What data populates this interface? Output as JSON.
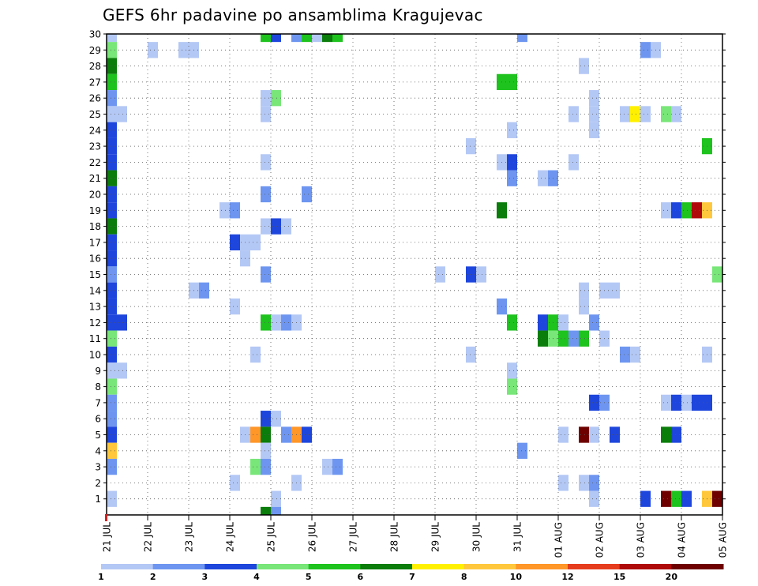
{
  "chart_data": {
    "type": "heatmap",
    "title": "GEFS 6hr padavine po ansamblima Kragujevac",
    "x_tick_labels": [
      "21 JUL",
      "22 JUL",
      "23 JUL",
      "24 JUL",
      "25 JUL",
      "26 JUL",
      "27 JUL",
      "28 JUL",
      "29 JUL",
      "30 JUL",
      "31 JUL",
      "01 AUG",
      "02 AUG",
      "03 AUG",
      "04 AUG",
      "05 AUG"
    ],
    "y_tick_labels": [
      "1",
      "2",
      "3",
      "4",
      "5",
      "6",
      "7",
      "8",
      "9",
      "10",
      "11",
      "12",
      "13",
      "14",
      "15",
      "16",
      "17",
      "18",
      "19",
      "20",
      "21",
      "22",
      "23",
      "24",
      "25",
      "26",
      "27",
      "28",
      "29",
      "30"
    ],
    "ylim": [
      0,
      30
    ],
    "x_steps": 60,
    "steps_per_day": 4,
    "grid": true,
    "colorbar": {
      "labels": [
        "1",
        "2",
        "3",
        "4",
        "5",
        "6",
        "7",
        "8",
        "10",
        "12",
        "15",
        "20"
      ],
      "colors": [
        "#b4c8f5",
        "#6e96f0",
        "#1e46dc",
        "#78e678",
        "#1ec31e",
        "#0a7d0a",
        "#fff000",
        "#ffc83c",
        "#ff9628",
        "#e63c1e",
        "#af0a0a",
        "#6e0000"
      ]
    },
    "cells": [
      [
        30,
        0,
        0
      ],
      [
        29,
        0,
        3
      ],
      [
        28,
        0,
        5
      ],
      [
        27,
        0,
        4
      ],
      [
        26,
        0,
        1
      ],
      [
        25,
        0,
        0
      ],
      [
        25,
        1,
        0
      ],
      [
        24,
        0,
        2
      ],
      [
        23,
        0,
        2
      ],
      [
        22,
        0,
        2
      ],
      [
        21,
        0,
        5
      ],
      [
        20,
        0,
        2
      ],
      [
        19,
        0,
        2
      ],
      [
        18,
        0,
        5
      ],
      [
        17,
        0,
        2
      ],
      [
        16,
        0,
        2
      ],
      [
        15,
        0,
        1
      ],
      [
        14,
        0,
        2
      ],
      [
        13,
        0,
        2
      ],
      [
        12,
        0,
        2
      ],
      [
        12,
        1,
        2
      ],
      [
        11,
        0,
        3
      ],
      [
        10,
        0,
        2
      ],
      [
        9,
        0,
        0
      ],
      [
        9,
        1,
        0
      ],
      [
        8,
        0,
        3
      ],
      [
        7,
        0,
        1
      ],
      [
        6,
        0,
        1
      ],
      [
        5,
        0,
        2
      ],
      [
        4,
        0,
        7
      ],
      [
        3,
        0,
        1
      ],
      [
        1,
        0,
        0
      ],
      [
        29,
        4,
        0
      ],
      [
        29,
        7,
        0
      ],
      [
        29,
        8,
        0
      ],
      [
        30,
        15,
        4
      ],
      [
        30,
        16,
        2
      ],
      [
        30,
        18,
        1
      ],
      [
        30,
        19,
        4
      ],
      [
        30,
        20,
        0
      ],
      [
        30,
        21,
        5
      ],
      [
        30,
        22,
        4
      ],
      [
        26,
        15,
        0
      ],
      [
        26,
        16,
        3
      ],
      [
        25,
        15,
        0
      ],
      [
        22,
        15,
        0
      ],
      [
        20,
        15,
        1
      ],
      [
        19,
        11,
        0
      ],
      [
        19,
        12,
        1
      ],
      [
        18,
        15,
        0
      ],
      [
        18,
        16,
        2
      ],
      [
        18,
        17,
        0
      ],
      [
        17,
        12,
        2
      ],
      [
        17,
        13,
        0
      ],
      [
        17,
        14,
        0
      ],
      [
        16,
        13,
        0
      ],
      [
        15,
        15,
        1
      ],
      [
        14,
        8,
        0
      ],
      [
        14,
        9,
        1
      ],
      [
        13,
        12,
        0
      ],
      [
        12,
        15,
        4
      ],
      [
        12,
        16,
        0
      ],
      [
        12,
        17,
        1
      ],
      [
        12,
        18,
        0
      ],
      [
        10,
        14,
        0
      ],
      [
        6,
        15,
        2
      ],
      [
        6,
        16,
        0
      ],
      [
        5,
        13,
        0
      ],
      [
        5,
        14,
        8
      ],
      [
        5,
        15,
        5
      ],
      [
        5,
        17,
        1
      ],
      [
        5,
        18,
        8
      ],
      [
        5,
        19,
        2
      ],
      [
        4,
        15,
        0
      ],
      [
        3,
        14,
        3
      ],
      [
        3,
        15,
        1
      ],
      [
        3,
        21,
        0
      ],
      [
        3,
        22,
        1
      ],
      [
        2,
        12,
        0
      ],
      [
        2,
        18,
        0
      ],
      [
        1,
        16,
        0
      ],
      [
        0,
        15,
        5
      ],
      [
        0,
        16,
        1
      ],
      [
        20,
        19,
        1
      ],
      [
        15,
        32,
        0
      ],
      [
        15,
        35,
        2
      ],
      [
        15,
        36,
        0
      ],
      [
        10,
        35,
        0
      ],
      [
        23,
        35,
        0
      ],
      [
        22,
        38,
        0
      ],
      [
        22,
        39,
        2
      ],
      [
        21,
        39,
        1
      ],
      [
        19,
        38,
        5
      ],
      [
        27,
        38,
        4
      ],
      [
        27,
        39,
        4
      ],
      [
        24,
        39,
        0
      ],
      [
        13,
        38,
        1
      ],
      [
        12,
        39,
        4
      ],
      [
        9,
        39,
        0
      ],
      [
        8,
        39,
        3
      ],
      [
        4,
        40,
        1
      ],
      [
        30,
        40,
        1
      ],
      [
        21,
        42,
        0
      ],
      [
        21,
        43,
        1
      ],
      [
        12,
        42,
        2
      ],
      [
        12,
        43,
        4
      ],
      [
        12,
        44,
        0
      ],
      [
        11,
        42,
        5
      ],
      [
        11,
        43,
        3
      ],
      [
        11,
        44,
        4
      ],
      [
        11,
        45,
        1
      ],
      [
        11,
        46,
        4
      ],
      [
        22,
        45,
        0
      ],
      [
        5,
        44,
        0
      ],
      [
        2,
        44,
        0
      ],
      [
        25,
        45,
        0
      ],
      [
        28,
        46,
        0
      ],
      [
        14,
        46,
        0
      ],
      [
        2,
        46,
        0
      ],
      [
        2,
        47,
        1
      ],
      [
        1,
        47,
        0
      ],
      [
        13,
        46,
        0
      ],
      [
        5,
        46,
        11
      ],
      [
        7,
        47,
        2
      ],
      [
        7,
        48,
        1
      ],
      [
        5,
        47,
        0
      ],
      [
        5,
        49,
        2
      ],
      [
        26,
        47,
        0
      ],
      [
        24,
        47,
        0
      ],
      [
        12,
        47,
        1
      ],
      [
        11,
        48,
        0
      ],
      [
        14,
        48,
        0
      ],
      [
        14,
        49,
        0
      ],
      [
        25,
        47,
        0
      ],
      [
        25,
        50,
        0
      ],
      [
        25,
        51,
        6
      ],
      [
        25,
        52,
        0
      ],
      [
        10,
        50,
        1
      ],
      [
        10,
        51,
        0
      ],
      [
        29,
        52,
        1
      ],
      [
        29,
        53,
        0
      ],
      [
        1,
        52,
        2
      ],
      [
        1,
        54,
        11
      ],
      [
        1,
        55,
        4
      ],
      [
        1,
        56,
        2
      ],
      [
        5,
        54,
        5
      ],
      [
        5,
        55,
        2
      ],
      [
        25,
        54,
        3
      ],
      [
        25,
        55,
        0
      ],
      [
        19,
        54,
        0
      ],
      [
        19,
        55,
        2
      ],
      [
        19,
        56,
        4
      ],
      [
        19,
        57,
        10
      ],
      [
        19,
        58,
        7
      ],
      [
        7,
        54,
        0
      ],
      [
        7,
        55,
        2
      ],
      [
        7,
        56,
        0
      ],
      [
        7,
        57,
        2
      ],
      [
        7,
        58,
        2
      ],
      [
        1,
        58,
        7
      ],
      [
        1,
        59,
        11
      ],
      [
        23,
        58,
        4
      ],
      [
        10,
        58,
        0
      ],
      [
        15,
        59,
        3
      ]
    ]
  }
}
